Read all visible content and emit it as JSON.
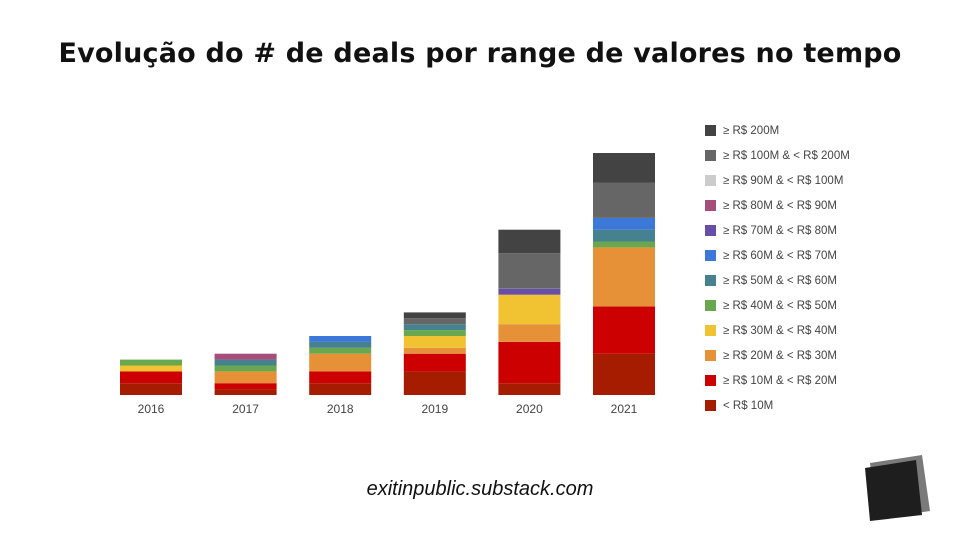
{
  "title": "Evolução do # de deals por range de valores no tempo",
  "footer": "exitinpublic.substack.com",
  "chart_data": {
    "type": "bar",
    "stacked": true,
    "categories": [
      "2016",
      "2017",
      "2018",
      "2019",
      "2020",
      "2021"
    ],
    "series": [
      {
        "name": "< R$ 10M",
        "color": "#a61c00",
        "values": [
          2,
          1,
          2,
          4,
          2,
          7
        ]
      },
      {
        "name": "≥ R$ 10M & < R$ 20M",
        "color": "#cc0000",
        "values": [
          2,
          1,
          2,
          3,
          7,
          8
        ]
      },
      {
        "name": "≥ R$ 20M & < R$ 30M",
        "color": "#e69138",
        "values": [
          0,
          2,
          3,
          1,
          3,
          10
        ]
      },
      {
        "name": "≥ R$ 30M & < R$ 40M",
        "color": "#f1c232",
        "values": [
          1,
          0,
          0,
          2,
          5,
          0
        ]
      },
      {
        "name": "≥ R$ 40M & < R$ 50M",
        "color": "#6aa84f",
        "values": [
          1,
          1,
          1,
          1,
          0,
          1
        ]
      },
      {
        "name": "≥ R$ 50M & < R$ 60M",
        "color": "#45818e",
        "values": [
          0,
          1,
          1,
          1,
          0,
          2
        ]
      },
      {
        "name": "≥ R$ 60M & < R$ 70M",
        "color": "#3c78d8",
        "values": [
          0,
          0,
          1,
          0,
          0,
          2
        ]
      },
      {
        "name": "≥ R$ 70M & < R$ 80M",
        "color": "#674ea7",
        "values": [
          0,
          0,
          0,
          0,
          1,
          0
        ]
      },
      {
        "name": "≥ R$ 80M & < R$ 90M",
        "color": "#a64d79",
        "values": [
          0,
          1,
          0,
          0,
          0,
          0
        ]
      },
      {
        "name": "≥ R$ 90M & < R$ 100M",
        "color": "#cccccc",
        "values": [
          0,
          0,
          0,
          0,
          0,
          0
        ]
      },
      {
        "name": "≥ R$ 100M & < R$ 200M",
        "color": "#666666",
        "values": [
          0,
          0,
          0,
          1,
          6,
          6
        ]
      },
      {
        "name": "≥ R$ 200M",
        "color": "#434343",
        "values": [
          0,
          0,
          0,
          1,
          4,
          5
        ]
      }
    ],
    "xlabel": "",
    "ylabel": "",
    "ylim": [
      0,
      41
    ],
    "grid": false,
    "legend": "right"
  }
}
